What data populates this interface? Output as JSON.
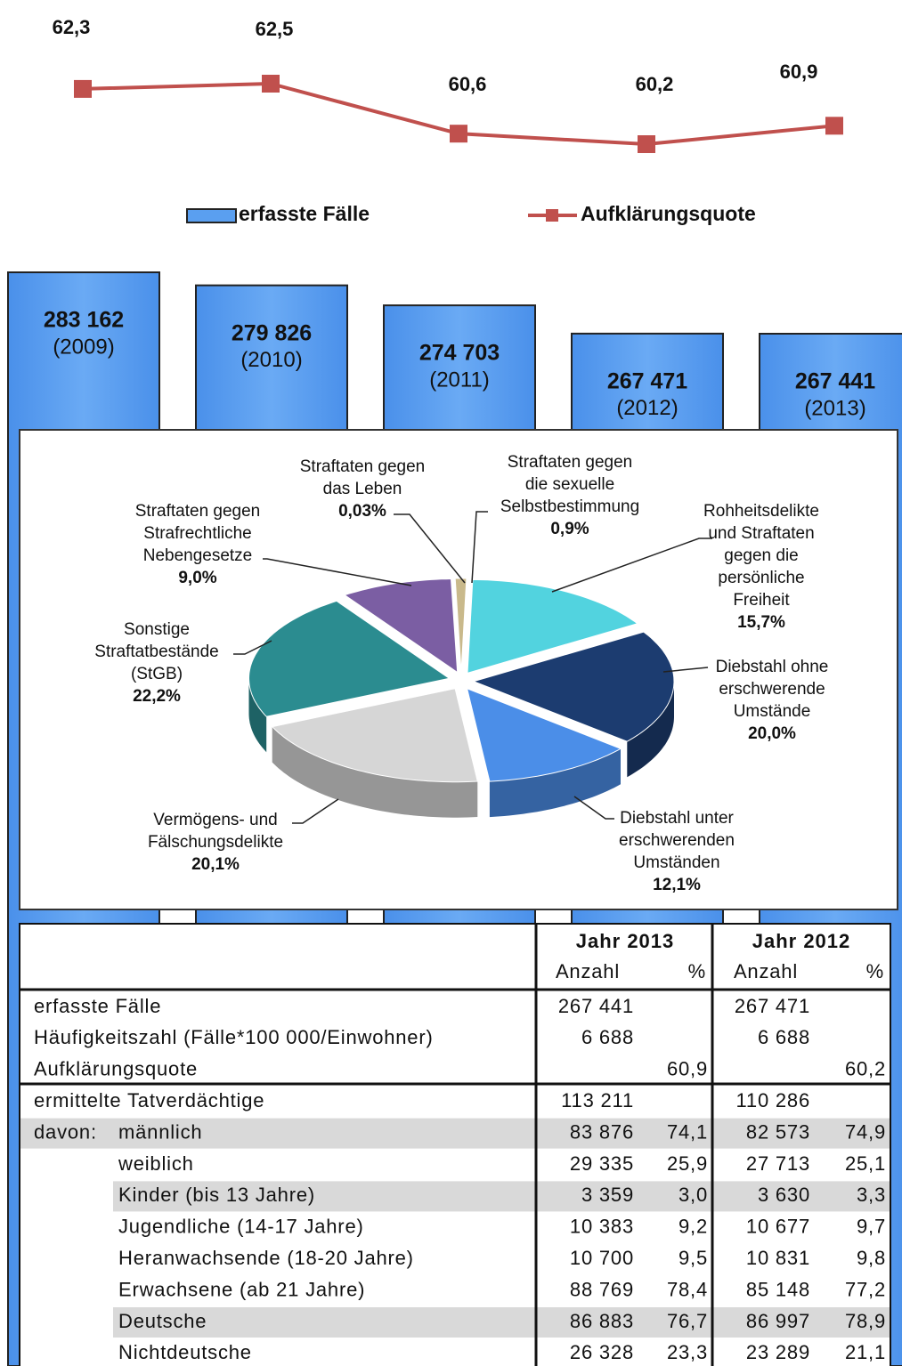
{
  "chart_data": [
    {
      "type": "line",
      "name": "Aufklärungsquote",
      "color": "#c0504d",
      "values": [
        62.3,
        62.5,
        60.6,
        60.2,
        60.9
      ],
      "value_labels": [
        "62,3",
        "62,5",
        "60,6",
        "60,2",
        "60,9"
      ]
    },
    {
      "type": "bar",
      "name": "erfasste Fälle",
      "color": "#5a9ff0",
      "categories": [
        "(2009)",
        "(2010)",
        "(2011)",
        "(2012)",
        "(2013)"
      ],
      "values": [
        283162,
        279826,
        274703,
        267471,
        267441
      ],
      "value_labels": [
        "283 162",
        "279 826",
        "274 703",
        "267 471",
        "267 441"
      ]
    },
    {
      "type": "pie",
      "categories": [
        [
          "Straftaten gegen",
          "die sexuelle",
          "Selbstbestimmung"
        ],
        [
          "Rohheitsdelikte",
          "und Straftaten",
          "gegen die",
          "persönliche",
          "Freiheit"
        ],
        [
          "Diebstahl ohne",
          "erschwerende",
          "Umstände"
        ],
        [
          "Diebstahl unter",
          "erschwerenden",
          "Umständen"
        ],
        [
          "Vermögens- und",
          "Fälschungsdelikte"
        ],
        [
          "Sonstige",
          "Straftatbestände",
          "(StGB)"
        ],
        [
          "Straftaten gegen",
          "Strafrechtliche",
          "Nebengesetze"
        ],
        [
          "Straftaten gegen",
          "das Leben"
        ]
      ],
      "values": [
        0.9,
        15.7,
        20.0,
        12.1,
        20.1,
        22.2,
        9.0,
        0.03
      ],
      "value_labels": [
        "0,9%",
        "15,7%",
        "20,0%",
        "12,1%",
        "20,1%",
        "22,2%",
        "9,0%",
        "0,03%"
      ],
      "colors": [
        "#c9b98b",
        "#52d3df",
        "#1c3c70",
        "#4b8ee8",
        "#d6d6d6",
        "#2b8c90",
        "#7b5ea3",
        "#b0a070"
      ]
    }
  ],
  "table": {
    "headers": [
      [
        "Jahr 2013",
        "Jahr 2012"
      ],
      [
        "Anzahl",
        "%",
        "Anzahl",
        "%"
      ]
    ],
    "rows": [
      {
        "label": "erfasste Fälle",
        "cells": [
          "267 441",
          "",
          "267 471",
          ""
        ]
      },
      {
        "label": "Häufigkeitszahl (Fälle*100 000/Einwohner)",
        "cells": [
          "6 688",
          "",
          "6 688",
          ""
        ]
      },
      {
        "label": "Aufklärungsquote",
        "cells": [
          "",
          "60,9",
          "",
          "60,2"
        ]
      },
      {
        "label": "ermittelte Tatverdächtige",
        "cells": [
          "113 211",
          "",
          "110 286",
          ""
        ]
      },
      {
        "prefix": "davon:",
        "label": "männlich",
        "cells": [
          "83 876",
          "74,1",
          "82 573",
          "74,9"
        ]
      },
      {
        "label": "weiblich",
        "cells": [
          "29 335",
          "25,9",
          "27 713",
          "25,1"
        ]
      },
      {
        "label": "Kinder (bis 13 Jahre)",
        "cells": [
          "3 359",
          "3,0",
          "3 630",
          "3,3"
        ]
      },
      {
        "label": "Jugendliche (14-17 Jahre)",
        "cells": [
          "10 383",
          "9,2",
          "10 677",
          "9,7"
        ]
      },
      {
        "label": "Heranwachsende (18-20 Jahre)",
        "cells": [
          "10 700",
          "9,5",
          "10 831",
          "9,8"
        ]
      },
      {
        "label": "Erwachsene (ab 21 Jahre)",
        "cells": [
          "88 769",
          "78,4",
          "85 148",
          "77,2"
        ]
      },
      {
        "label": "Deutsche",
        "cells": [
          "86 883",
          "76,7",
          "86 997",
          "78,9"
        ]
      },
      {
        "label": "Nichtdeutsche",
        "cells": [
          "26 328",
          "23,3",
          "23 289",
          "21,1"
        ]
      }
    ]
  }
}
